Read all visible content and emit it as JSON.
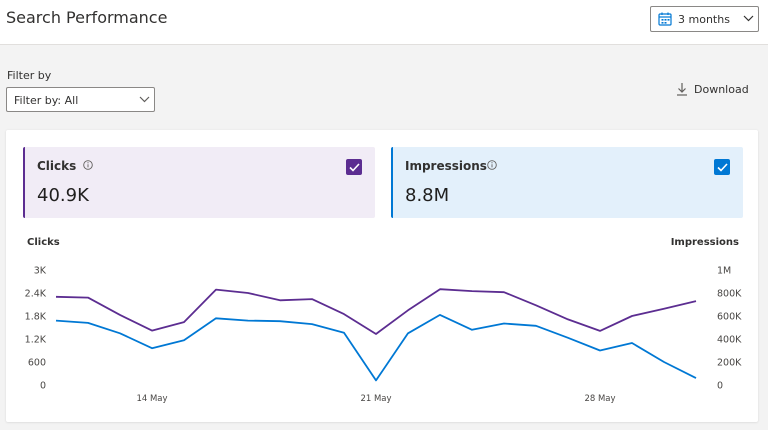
{
  "header": {
    "title": "Search Performance",
    "date_range": {
      "value": "3 months",
      "icon": "calendar-icon"
    }
  },
  "filter": {
    "label": "Filter by",
    "value": "Filter by: All"
  },
  "toolbar": {
    "download_label": "Download",
    "download_icon": "download-icon"
  },
  "metrics": {
    "clicks": {
      "label": "Clicks",
      "value": "40.9K",
      "checked": true,
      "color": "#5c2d91"
    },
    "impressions": {
      "label": "Impressions",
      "value": "8.8M",
      "checked": true,
      "color": "#0078d4"
    }
  },
  "chart_data": {
    "type": "line",
    "x_tick_labels": [
      "14 May",
      "21 May",
      "28 May"
    ],
    "y_left": {
      "label": "Clicks",
      "ticks": [
        "0",
        "600",
        "1.2K",
        "1.8K",
        "2.4K",
        "3K"
      ],
      "ylim": [
        0,
        3000
      ]
    },
    "y_right": {
      "label": "Impressions",
      "ticks": [
        "0",
        "200K",
        "400K",
        "600K",
        "800K",
        "1M"
      ],
      "ylim": [
        0,
        1000000
      ]
    },
    "grid": false,
    "series": [
      {
        "name": "Clicks",
        "axis": "left",
        "color": "#5c2d91",
        "values": [
          2300,
          2280,
          1830,
          1420,
          1640,
          2490,
          2400,
          2210,
          2240,
          1850,
          1330,
          1950,
          2500,
          2450,
          2420,
          2080,
          1710,
          1410,
          1800,
          1990,
          2190
        ]
      },
      {
        "name": "Impressions",
        "axis": "right",
        "color": "#0078d4",
        "values": [
          560000,
          540000,
          450000,
          320000,
          390000,
          580000,
          560000,
          555000,
          530000,
          455000,
          40000,
          450000,
          610000,
          480000,
          535000,
          515000,
          410000,
          300000,
          365000,
          200000,
          60000
        ]
      }
    ]
  }
}
